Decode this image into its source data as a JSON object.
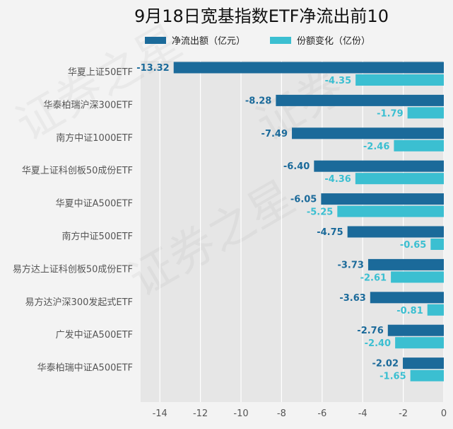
{
  "title": "9月18日宽基指数ETF净流出前10",
  "legend": [
    {
      "label": "净流出额（亿元）",
      "color": "#1b6a9a"
    },
    {
      "label": "份额变化（亿份）",
      "color": "#3bbfd1"
    }
  ],
  "chart_data": {
    "type": "bar",
    "orientation": "horizontal",
    "categories": [
      "华夏上证50ETF",
      "华泰柏瑞沪深300ETF",
      "南方中证1000ETF",
      "华夏上证科创板50成份ETF",
      "华夏中证A500ETF",
      "南方中证500ETF",
      "易方达上证科创板50成份ETF",
      "易方达沪深300发起式ETF",
      "广发中证A500ETF",
      "华泰柏瑞中证A500ETF"
    ],
    "series": [
      {
        "name": "净流出额（亿元）",
        "color": "#1b6a9a",
        "values": [
          -13.32,
          -8.28,
          -7.49,
          -6.4,
          -6.05,
          -4.75,
          -3.73,
          -3.63,
          -2.76,
          -2.02
        ],
        "labels": [
          "-13.32",
          "-8.28",
          "-7.49",
          "-6.40",
          "-6.05",
          "-4.75",
          "-3.73",
          "-3.63",
          "-2.76",
          "-2.02"
        ]
      },
      {
        "name": "份额变化（亿份）",
        "color": "#3bbfd1",
        "values": [
          -4.35,
          -1.79,
          -2.46,
          -4.36,
          -5.25,
          -0.65,
          -2.61,
          -0.81,
          -2.4,
          -1.65
        ],
        "labels": [
          "-4.35",
          "-1.79",
          "-2.46",
          "-4.36",
          "-5.25",
          "-0.65",
          "-2.61",
          "-0.81",
          "-2.40",
          "-1.65"
        ]
      }
    ],
    "xlim": [
      -15,
      0
    ],
    "xticks": [
      -14,
      -12,
      -10,
      -8,
      -6,
      -4,
      -2,
      0
    ],
    "xtick_labels": [
      "-14",
      "-12",
      "-10",
      "-8",
      "-6",
      "-4",
      "-2",
      "0"
    ],
    "grid": true,
    "legend_position": "top"
  }
}
